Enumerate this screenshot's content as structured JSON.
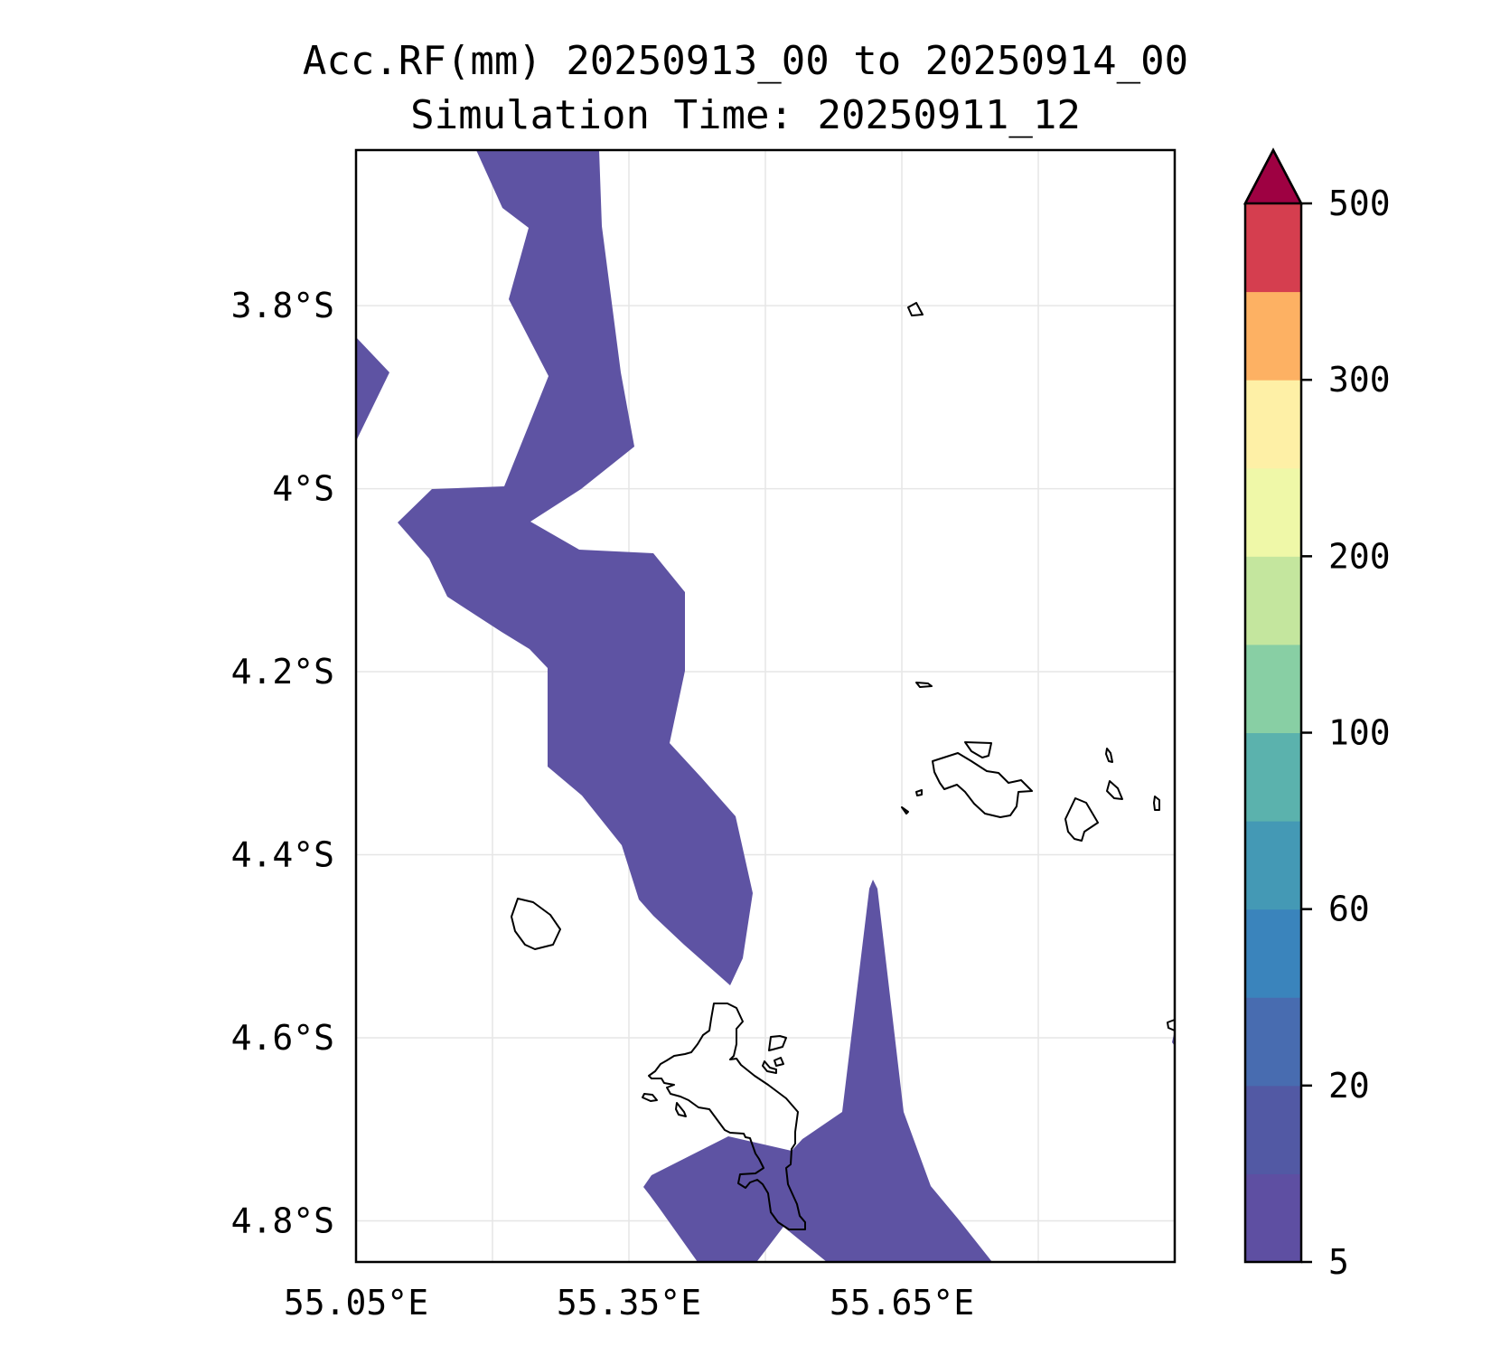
{
  "title": {
    "line1": "Acc.RF(mm) 20250913_00 to 20250914_00",
    "line2": "Simulation Time: 20250911_12"
  },
  "map": {
    "lon_range": [
      55.05,
      55.95
    ],
    "lat_range": [
      -4.845,
      -3.63
    ],
    "gridlines": true,
    "lon_ticks": [
      {
        "value": 55.05,
        "label": "55.05°E"
      },
      {
        "value": 55.35,
        "label": "55.35°E"
      },
      {
        "value": 55.65,
        "label": "55.65°E"
      }
    ],
    "lon_gridlines": [
      55.05,
      55.2,
      55.35,
      55.5,
      55.65,
      55.8
    ],
    "lat_ticks": [
      {
        "value": -3.8,
        "label": "3.8°S"
      },
      {
        "value": -4.0,
        "label": "4°S"
      },
      {
        "value": -4.2,
        "label": "4.2°S"
      },
      {
        "value": -4.4,
        "label": "4.4°S"
      },
      {
        "value": -4.6,
        "label": "4.6°S"
      },
      {
        "value": -4.8,
        "label": "4.8°S"
      }
    ],
    "rainfall_fill_color": "#5e53a3",
    "coastline_color": "#000000"
  },
  "colorbar": {
    "ticks": [
      "5",
      "20",
      "60",
      "100",
      "200",
      "300",
      "500"
    ],
    "colors_bottom_to_top": [
      "#5e4fa2",
      "#5259a4",
      "#486cb0",
      "#3a84bc",
      "#4499b5",
      "#5bb2ad",
      "#88cfa4",
      "#c4e69e",
      "#eff8a8",
      "#fef0a6",
      "#fdb163",
      "#d53e4f"
    ],
    "extend_color": "#9e0142",
    "extend": "max"
  }
}
